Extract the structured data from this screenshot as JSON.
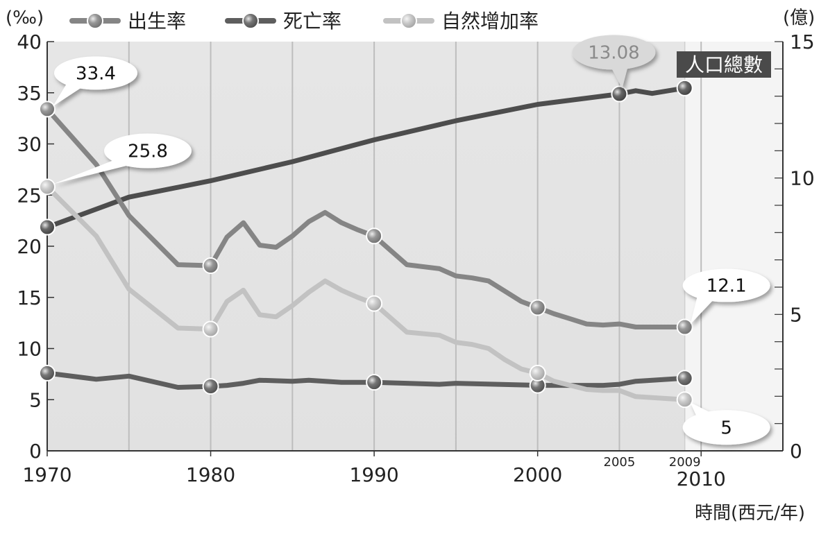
{
  "chart_data": {
    "type": "line",
    "left_unit": "(‰)",
    "right_unit": "(億)",
    "xlabel": "時間(西元/年)",
    "x_ticks": [
      "1970",
      "1980",
      "1990",
      "2000",
      "2010"
    ],
    "x_extra_ticks": [
      "2005",
      "2009"
    ],
    "y_left_ticks": [
      "0",
      "5",
      "10",
      "15",
      "20",
      "25",
      "30",
      "35",
      "40"
    ],
    "y_right_ticks": [
      "0",
      "5",
      "10",
      "15"
    ],
    "ylim_left": [
      0,
      40
    ],
    "ylim_right": [
      0,
      15
    ],
    "xlim": [
      1970,
      2015
    ],
    "grid": "vertical every 5 years",
    "legend_position": "top",
    "series": [
      {
        "name": "出生率",
        "axis": "left",
        "color": "#858585",
        "x": [
          1970,
          1973,
          1975,
          1978,
          1980,
          1981,
          1982,
          1983,
          1984,
          1985,
          1986,
          1987,
          1988,
          1989,
          1990,
          1992,
          1994,
          1995,
          1996,
          1997,
          1998,
          1999,
          2000,
          2001,
          2002,
          2003,
          2004,
          2005,
          2006,
          2007,
          2008,
          2009
        ],
        "values": [
          33.4,
          28.0,
          23.0,
          18.2,
          18.1,
          20.9,
          22.3,
          20.1,
          19.9,
          21.0,
          22.4,
          23.3,
          22.3,
          21.6,
          21.0,
          18.2,
          17.8,
          17.1,
          16.9,
          16.6,
          15.6,
          14.6,
          14.0,
          13.4,
          12.9,
          12.4,
          12.3,
          12.4,
          12.1,
          12.1,
          12.1,
          12.1
        ],
        "markers": [
          1970,
          1980,
          1990,
          2000,
          2009
        ]
      },
      {
        "name": "死亡率",
        "axis": "left",
        "color": "#5e5e5e",
        "x": [
          1970,
          1973,
          1975,
          1978,
          1980,
          1981,
          1982,
          1983,
          1985,
          1986,
          1988,
          1990,
          1992,
          1994,
          1995,
          2000,
          2002,
          2004,
          2005,
          2006,
          2008,
          2009
        ],
        "values": [
          7.6,
          7.0,
          7.3,
          6.2,
          6.3,
          6.4,
          6.6,
          6.9,
          6.8,
          6.9,
          6.7,
          6.7,
          6.6,
          6.5,
          6.6,
          6.4,
          6.4,
          6.4,
          6.5,
          6.8,
          7.0,
          7.1
        ],
        "markers": [
          1970,
          1980,
          1990,
          2000,
          2009
        ]
      },
      {
        "name": "自然增加率",
        "axis": "left",
        "color": "#c2c2c2",
        "x": [
          1970,
          1973,
          1975,
          1978,
          1980,
          1981,
          1982,
          1983,
          1984,
          1985,
          1986,
          1987,
          1988,
          1989,
          1990,
          1992,
          1994,
          1995,
          1996,
          1997,
          1998,
          1999,
          2000,
          2001,
          2002,
          2003,
          2004,
          2005,
          2006,
          2007,
          2008,
          2009
        ],
        "values": [
          25.8,
          21.0,
          15.8,
          12.0,
          11.9,
          14.6,
          15.7,
          13.3,
          13.1,
          14.2,
          15.5,
          16.6,
          15.7,
          15.0,
          14.4,
          11.6,
          11.3,
          10.6,
          10.4,
          10.0,
          8.9,
          8.0,
          7.6,
          6.8,
          6.4,
          6.0,
          5.9,
          5.9,
          5.3,
          5.2,
          5.1,
          5.0
        ],
        "markers": [
          1970,
          1980,
          1990,
          2000,
          2009
        ]
      },
      {
        "name": "人口總數",
        "axis": "right",
        "color": "#4d4d4d",
        "x": [
          1970,
          1975,
          1980,
          1985,
          1990,
          1995,
          2000,
          2005,
          2006,
          2007,
          2008,
          2009
        ],
        "values": [
          8.2,
          9.3,
          9.9,
          10.6,
          11.4,
          12.1,
          12.7,
          13.08,
          13.2,
          13.1,
          13.2,
          13.3
        ],
        "markers": [
          1970,
          2005,
          2009
        ]
      }
    ],
    "area_label": "人口總數",
    "annotations": [
      {
        "text": "33.4",
        "x": 1970,
        "y": 33.4,
        "axis": "left"
      },
      {
        "text": "25.8",
        "x": 1970,
        "y": 25.8,
        "axis": "left"
      },
      {
        "text": "13.08",
        "x": 2005,
        "y": 13.08,
        "axis": "right"
      },
      {
        "text": "12.1",
        "x": 2009,
        "y": 12.1,
        "axis": "left"
      },
      {
        "text": "5",
        "x": 2009,
        "y": 5.0,
        "axis": "left"
      }
    ]
  }
}
